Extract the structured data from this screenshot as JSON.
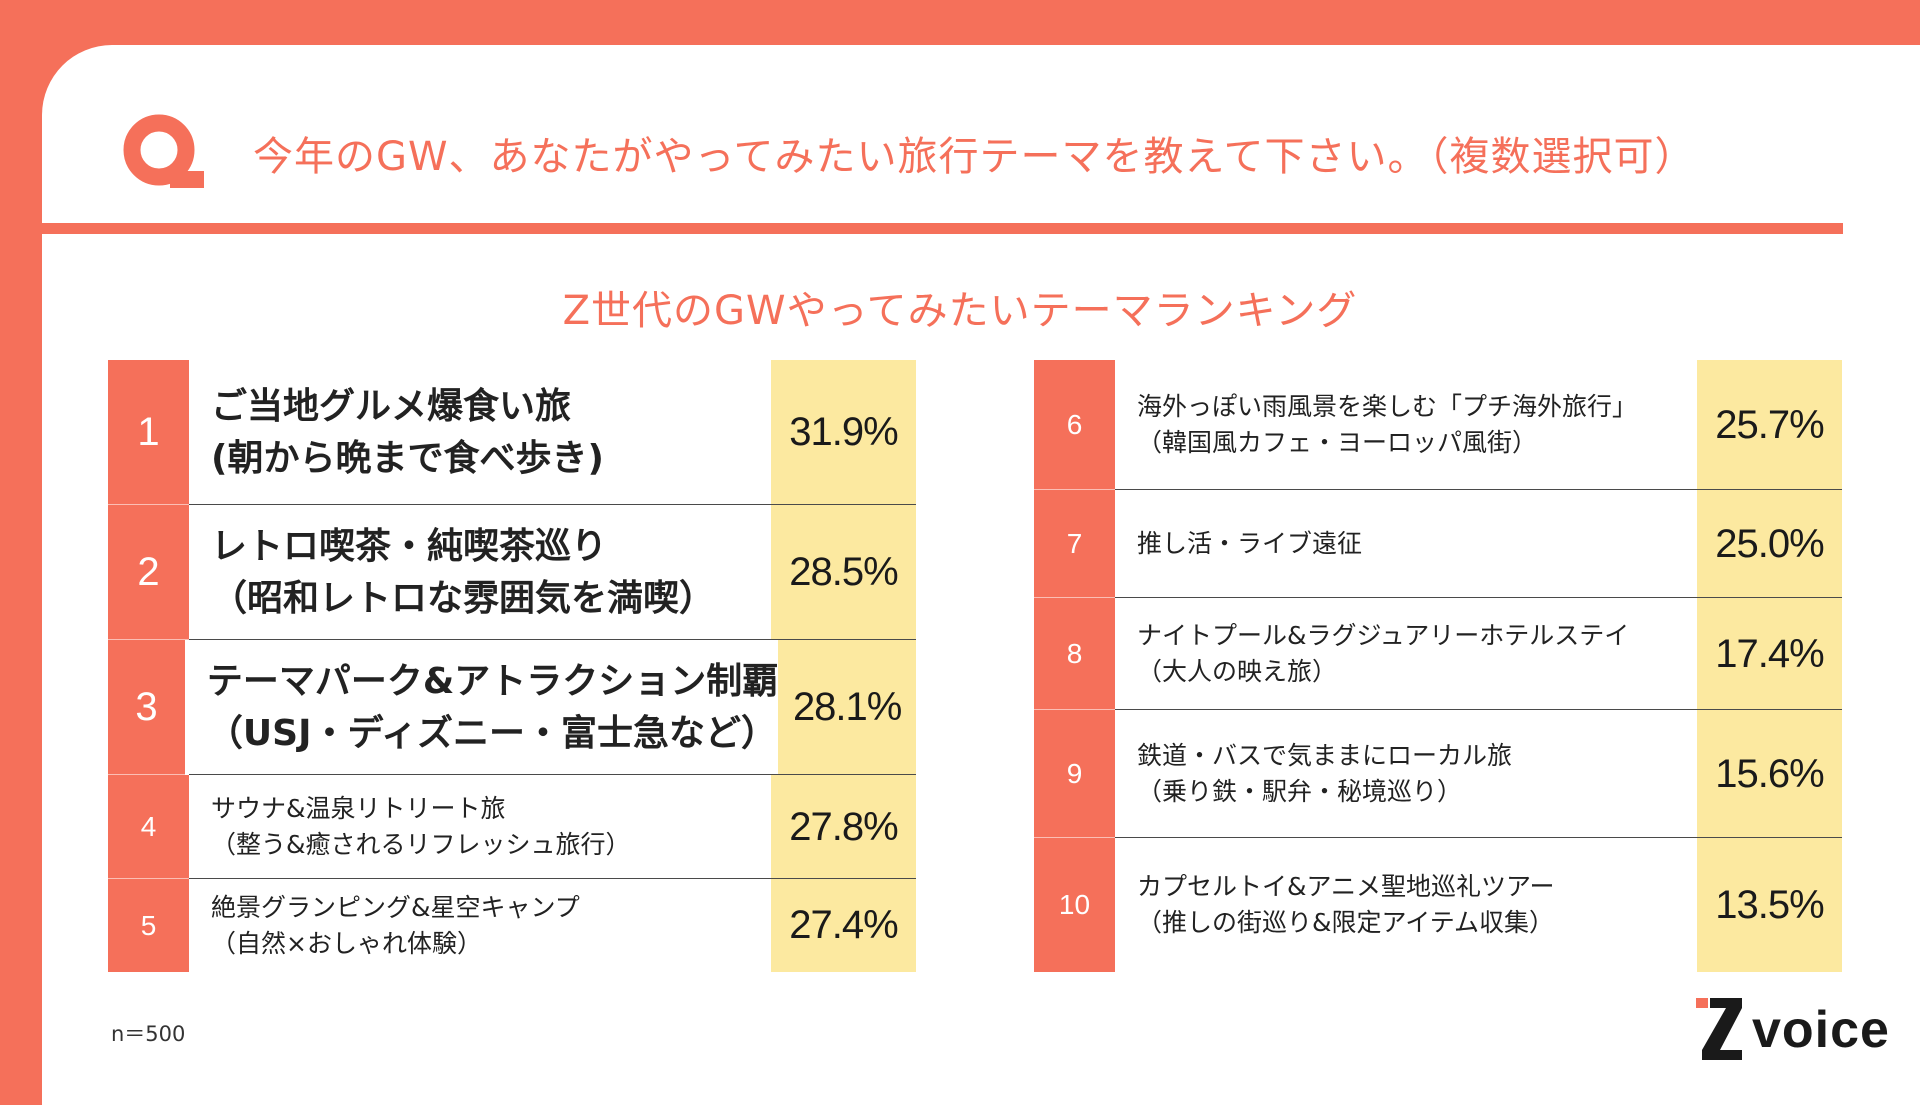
{
  "question": "今年のGW、あなたがやってみたい旅行テーマを教えて下さい。（複数選択可）",
  "subtitle": "Z世代のGWやってみたいテーマランキング",
  "left_items": [
    {
      "rank": "1",
      "line1": "ご当地グルメ爆食い旅",
      "line2": "(朝から晩まで食べ歩き)",
      "pct": "31.9%"
    },
    {
      "rank": "2",
      "line1": "レトロ喫茶・純喫茶巡り",
      "line2": "（昭和レトロな雰囲気を満喫）",
      "pct": "28.5%"
    },
    {
      "rank": "3",
      "line1": "テーマパーク&アトラクション制覇",
      "line2": "（USJ・ディズニー・富士急など）",
      "pct": "28.1%"
    },
    {
      "rank": "4",
      "line1": "サウナ&温泉リトリート旅",
      "line2": "（整う&癒されるリフレッシュ旅行）",
      "pct": "27.8%"
    },
    {
      "rank": "5",
      "line1": "絶景グランピング&星空キャンプ",
      "line2": "（自然×おしゃれ体験）",
      "pct": "27.4%"
    }
  ],
  "right_items": [
    {
      "rank": "6",
      "line1": "海外っぽい雨風景を楽しむ「プチ海外旅行」",
      "line2": "（韓国風カフェ・ヨーロッパ風街）",
      "pct": "25.7%"
    },
    {
      "rank": "7",
      "line1": "推し活・ライブ遠征",
      "line2": "",
      "pct": "25.0%"
    },
    {
      "rank": "8",
      "line1": "ナイトプール&ラグジュアリーホテルステイ",
      "line2": "（大人の映え旅）",
      "pct": "17.4%"
    },
    {
      "rank": "9",
      "line1": "鉄道・バスで気ままにローカル旅",
      "line2": "（乗り鉄・駅弁・秘境巡り）",
      "pct": "15.6%"
    },
    {
      "rank": "10",
      "line1": "カプセルトイ&アニメ聖地巡礼ツアー",
      "line2": "（推しの街巡り&限定アイテム収集）",
      "pct": "13.5%"
    }
  ],
  "footnote": "n＝500",
  "brand": {
    "name": "voice",
    "accent": "#F5705A",
    "highlight": "#FCE9A0"
  }
}
